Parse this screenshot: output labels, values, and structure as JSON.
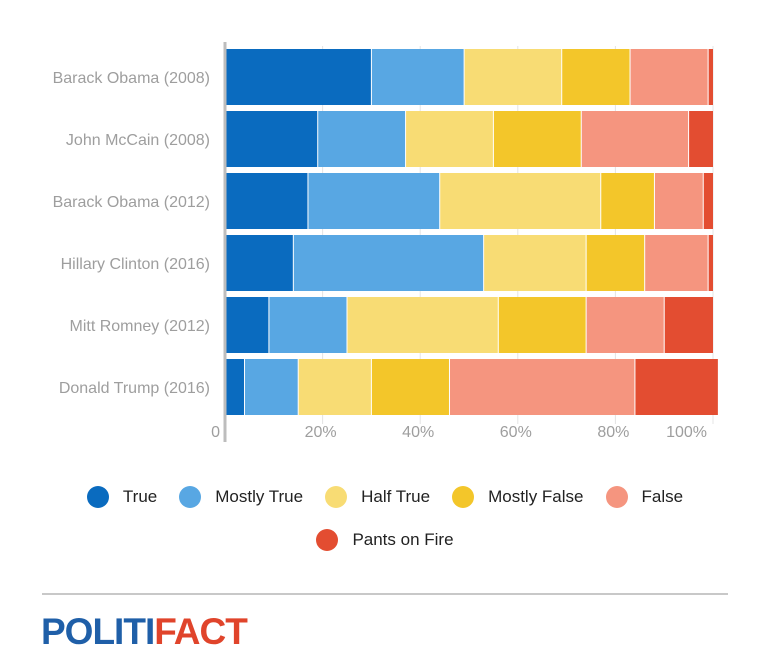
{
  "chart_data": {
    "type": "bar",
    "orientation": "horizontal",
    "stacked": true,
    "categories": [
      "Barack Obama (2008)",
      "John McCain (2008)",
      "Barack Obama (2012)",
      "Hillary Clinton (2016)",
      "Mitt Romney (2012)",
      "Donald Trump (2016)"
    ],
    "series": [
      {
        "name": "True",
        "color": "#0a6bbf",
        "values": [
          30,
          19,
          17,
          14,
          9,
          4
        ]
      },
      {
        "name": "Mostly True",
        "color": "#58a7e3",
        "values": [
          19,
          18,
          27,
          39,
          16,
          11
        ]
      },
      {
        "name": "Half True",
        "color": "#f8dc74",
        "values": [
          20,
          18,
          33,
          21,
          31,
          15
        ]
      },
      {
        "name": "Mostly False",
        "color": "#f3c62a",
        "values": [
          14,
          18,
          11,
          12,
          18,
          16
        ]
      },
      {
        "name": "False",
        "color": "#f5957f",
        "values": [
          16,
          22,
          10,
          13,
          16,
          38
        ]
      },
      {
        "name": "Pants on Fire",
        "color": "#e34d31",
        "values": [
          1,
          5,
          2,
          1,
          10,
          17
        ]
      }
    ],
    "xlim": [
      0,
      100
    ],
    "xticks": [
      0,
      20,
      40,
      60,
      80,
      100
    ],
    "xtick_labels": [
      "0",
      "20%",
      "40%",
      "60%",
      "80%",
      "100%"
    ],
    "grid": true,
    "legend_position": "bottom"
  },
  "legend": {
    "row1": [
      "True",
      "Mostly True",
      "Half True",
      "Mostly False",
      "False"
    ],
    "row2": [
      "Pants on Fire"
    ]
  },
  "logo": {
    "part1": "POLITI",
    "part2": "FACT"
  }
}
